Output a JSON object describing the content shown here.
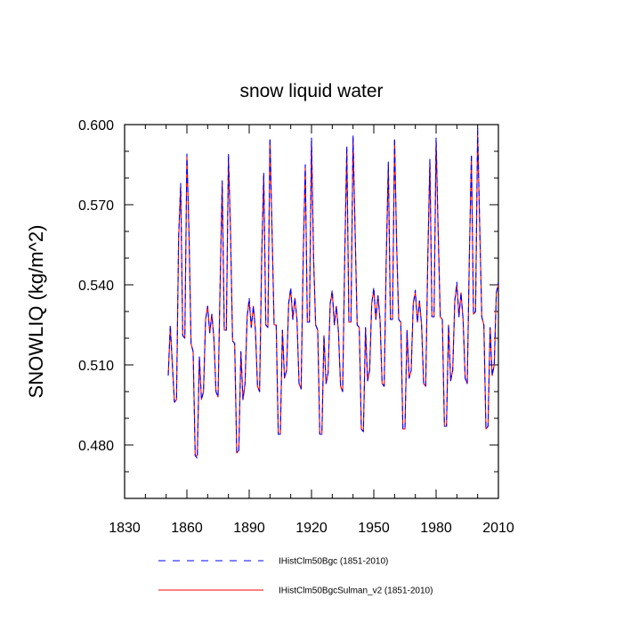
{
  "chart_data": {
    "type": "line",
    "title": "snow liquid water",
    "xlabel": "",
    "ylabel": "SNOWLIQ  (kg/m^2)",
    "xlim": [
      1830,
      2010
    ],
    "ylim": [
      0.46,
      0.6
    ],
    "xticks": [
      "1830",
      "1860",
      "1890",
      "1920",
      "1950",
      "1980",
      "2010"
    ],
    "yticks": [
      "0.480",
      "0.510",
      "0.540",
      "0.570",
      "0.600"
    ],
    "grid": false,
    "legend_position": "bottom",
    "series": [
      {
        "name": "IHistClm50Bgc (1851-2010)",
        "color": "#0000ff",
        "style": "dashed",
        "x": [
          1851,
          1852,
          1853,
          1854,
          1855,
          1856,
          1857,
          1858,
          1859,
          1860,
          1861,
          1862,
          1863,
          1864,
          1865,
          1866,
          1867,
          1868,
          1869,
          1870,
          1871,
          1872,
          1873,
          1874,
          1875,
          1876,
          1877,
          1878,
          1879,
          1880,
          1881,
          1882,
          1883,
          1884,
          1885,
          1886,
          1887,
          1888,
          1889,
          1890,
          1891,
          1892,
          1893,
          1894,
          1895,
          1896,
          1897,
          1898,
          1899,
          1900,
          1901,
          1902,
          1903,
          1904,
          1905,
          1906,
          1907,
          1908,
          1909,
          1910,
          1911,
          1912,
          1913,
          1914,
          1915,
          1916,
          1917,
          1918,
          1919,
          1920,
          1921,
          1922,
          1923,
          1924,
          1925,
          1926,
          1927,
          1928,
          1929,
          1930,
          1931,
          1932,
          1933,
          1934,
          1935,
          1936,
          1937,
          1938,
          1939,
          1940,
          1941,
          1942,
          1943,
          1944,
          1945,
          1946,
          1947,
          1948,
          1949,
          1950,
          1951,
          1952,
          1953,
          1954,
          1955,
          1956,
          1957,
          1958,
          1959,
          1960,
          1961,
          1962,
          1963,
          1964,
          1965,
          1966,
          1967,
          1968,
          1969,
          1970,
          1971,
          1972,
          1973,
          1974,
          1975,
          1976,
          1977,
          1978,
          1979,
          1980,
          1981,
          1982,
          1983,
          1984,
          1985,
          1986,
          1987,
          1988,
          1989,
          1990,
          1991,
          1992,
          1993,
          1994,
          1995,
          1996,
          1997,
          1998,
          1999,
          2000,
          2001,
          2002,
          2003,
          2004,
          2005,
          2006,
          2007,
          2008,
          2009,
          2010
        ],
        "values": [
          0.506,
          0.525,
          0.51,
          0.496,
          0.497,
          0.558,
          0.578,
          0.521,
          0.52,
          0.589,
          0.56,
          0.518,
          0.515,
          0.476,
          0.475,
          0.513,
          0.497,
          0.5,
          0.527,
          0.532,
          0.522,
          0.529,
          0.52,
          0.5,
          0.498,
          0.54,
          0.579,
          0.523,
          0.523,
          0.589,
          0.56,
          0.519,
          0.518,
          0.477,
          0.478,
          0.515,
          0.497,
          0.503,
          0.528,
          0.535,
          0.524,
          0.532,
          0.523,
          0.502,
          0.5,
          0.55,
          0.582,
          0.525,
          0.524,
          0.595,
          0.56,
          0.525,
          0.525,
          0.484,
          0.484,
          0.523,
          0.505,
          0.508,
          0.533,
          0.539,
          0.527,
          0.535,
          0.527,
          0.503,
          0.501,
          0.55,
          0.585,
          0.526,
          0.526,
          0.595,
          0.55,
          0.525,
          0.523,
          0.484,
          0.484,
          0.521,
          0.503,
          0.507,
          0.533,
          0.538,
          0.525,
          0.532,
          0.522,
          0.502,
          0.5,
          0.55,
          0.592,
          0.526,
          0.526,
          0.596,
          0.56,
          0.525,
          0.524,
          0.486,
          0.485,
          0.524,
          0.504,
          0.508,
          0.533,
          0.539,
          0.527,
          0.536,
          0.527,
          0.503,
          0.502,
          0.55,
          0.586,
          0.527,
          0.527,
          0.595,
          0.555,
          0.527,
          0.526,
          0.486,
          0.486,
          0.523,
          0.505,
          0.508,
          0.533,
          0.538,
          0.526,
          0.534,
          0.525,
          0.503,
          0.502,
          0.55,
          0.587,
          0.528,
          0.528,
          0.595,
          0.56,
          0.528,
          0.527,
          0.487,
          0.487,
          0.525,
          0.504,
          0.508,
          0.534,
          0.541,
          0.528,
          0.537,
          0.527,
          0.505,
          0.503,
          0.55,
          0.589,
          0.529,
          0.53,
          0.599,
          0.562,
          0.528,
          0.525,
          0.486,
          0.487,
          0.524,
          0.506,
          0.51,
          0.537,
          0.541
        ]
      },
      {
        "name": "IHistClm50BgcSulman_v2 (1851-2010)",
        "color": "#ff0000",
        "style": "solid",
        "x": [
          1851,
          1852,
          1853,
          1854,
          1855,
          1856,
          1857,
          1858,
          1859,
          1860,
          1861,
          1862,
          1863,
          1864,
          1865,
          1866,
          1867,
          1868,
          1869,
          1870,
          1871,
          1872,
          1873,
          1874,
          1875,
          1876,
          1877,
          1878,
          1879,
          1880,
          1881,
          1882,
          1883,
          1884,
          1885,
          1886,
          1887,
          1888,
          1889,
          1890,
          1891,
          1892,
          1893,
          1894,
          1895,
          1896,
          1897,
          1898,
          1899,
          1900,
          1901,
          1902,
          1903,
          1904,
          1905,
          1906,
          1907,
          1908,
          1909,
          1910,
          1911,
          1912,
          1913,
          1914,
          1915,
          1916,
          1917,
          1918,
          1919,
          1920,
          1921,
          1922,
          1923,
          1924,
          1925,
          1926,
          1927,
          1928,
          1929,
          1930,
          1931,
          1932,
          1933,
          1934,
          1935,
          1936,
          1937,
          1938,
          1939,
          1940,
          1941,
          1942,
          1943,
          1944,
          1945,
          1946,
          1947,
          1948,
          1949,
          1950,
          1951,
          1952,
          1953,
          1954,
          1955,
          1956,
          1957,
          1958,
          1959,
          1960,
          1961,
          1962,
          1963,
          1964,
          1965,
          1966,
          1967,
          1968,
          1969,
          1970,
          1971,
          1972,
          1973,
          1974,
          1975,
          1976,
          1977,
          1978,
          1979,
          1980,
          1981,
          1982,
          1983,
          1984,
          1985,
          1986,
          1987,
          1988,
          1989,
          1990,
          1991,
          1992,
          1993,
          1994,
          1995,
          1996,
          1997,
          1998,
          1999,
          2000,
          2001,
          2002,
          2003,
          2004,
          2005,
          2006,
          2007,
          2008,
          2009,
          2010
        ],
        "values": [
          0.506,
          0.524,
          0.51,
          0.496,
          0.497,
          0.557,
          0.577,
          0.521,
          0.52,
          0.588,
          0.56,
          0.518,
          0.515,
          0.476,
          0.476,
          0.513,
          0.497,
          0.5,
          0.527,
          0.532,
          0.522,
          0.529,
          0.52,
          0.5,
          0.498,
          0.54,
          0.578,
          0.523,
          0.523,
          0.588,
          0.56,
          0.519,
          0.518,
          0.477,
          0.478,
          0.515,
          0.497,
          0.503,
          0.528,
          0.534,
          0.524,
          0.532,
          0.523,
          0.502,
          0.5,
          0.55,
          0.581,
          0.525,
          0.524,
          0.594,
          0.56,
          0.525,
          0.525,
          0.484,
          0.484,
          0.523,
          0.505,
          0.508,
          0.533,
          0.538,
          0.527,
          0.535,
          0.527,
          0.503,
          0.501,
          0.55,
          0.584,
          0.526,
          0.526,
          0.594,
          0.55,
          0.525,
          0.523,
          0.484,
          0.484,
          0.521,
          0.503,
          0.507,
          0.533,
          0.537,
          0.525,
          0.532,
          0.522,
          0.502,
          0.5,
          0.55,
          0.591,
          0.526,
          0.526,
          0.595,
          0.56,
          0.525,
          0.524,
          0.486,
          0.485,
          0.524,
          0.504,
          0.508,
          0.533,
          0.538,
          0.527,
          0.536,
          0.527,
          0.503,
          0.502,
          0.55,
          0.585,
          0.527,
          0.527,
          0.594,
          0.555,
          0.527,
          0.526,
          0.486,
          0.486,
          0.523,
          0.505,
          0.508,
          0.533,
          0.537,
          0.526,
          0.534,
          0.525,
          0.503,
          0.502,
          0.55,
          0.586,
          0.528,
          0.528,
          0.594,
          0.56,
          0.528,
          0.527,
          0.487,
          0.487,
          0.525,
          0.504,
          0.508,
          0.534,
          0.54,
          0.528,
          0.537,
          0.527,
          0.505,
          0.503,
          0.55,
          0.588,
          0.529,
          0.53,
          0.597,
          0.562,
          0.528,
          0.525,
          0.486,
          0.487,
          0.524,
          0.506,
          0.51,
          0.537,
          0.54
        ]
      }
    ]
  }
}
